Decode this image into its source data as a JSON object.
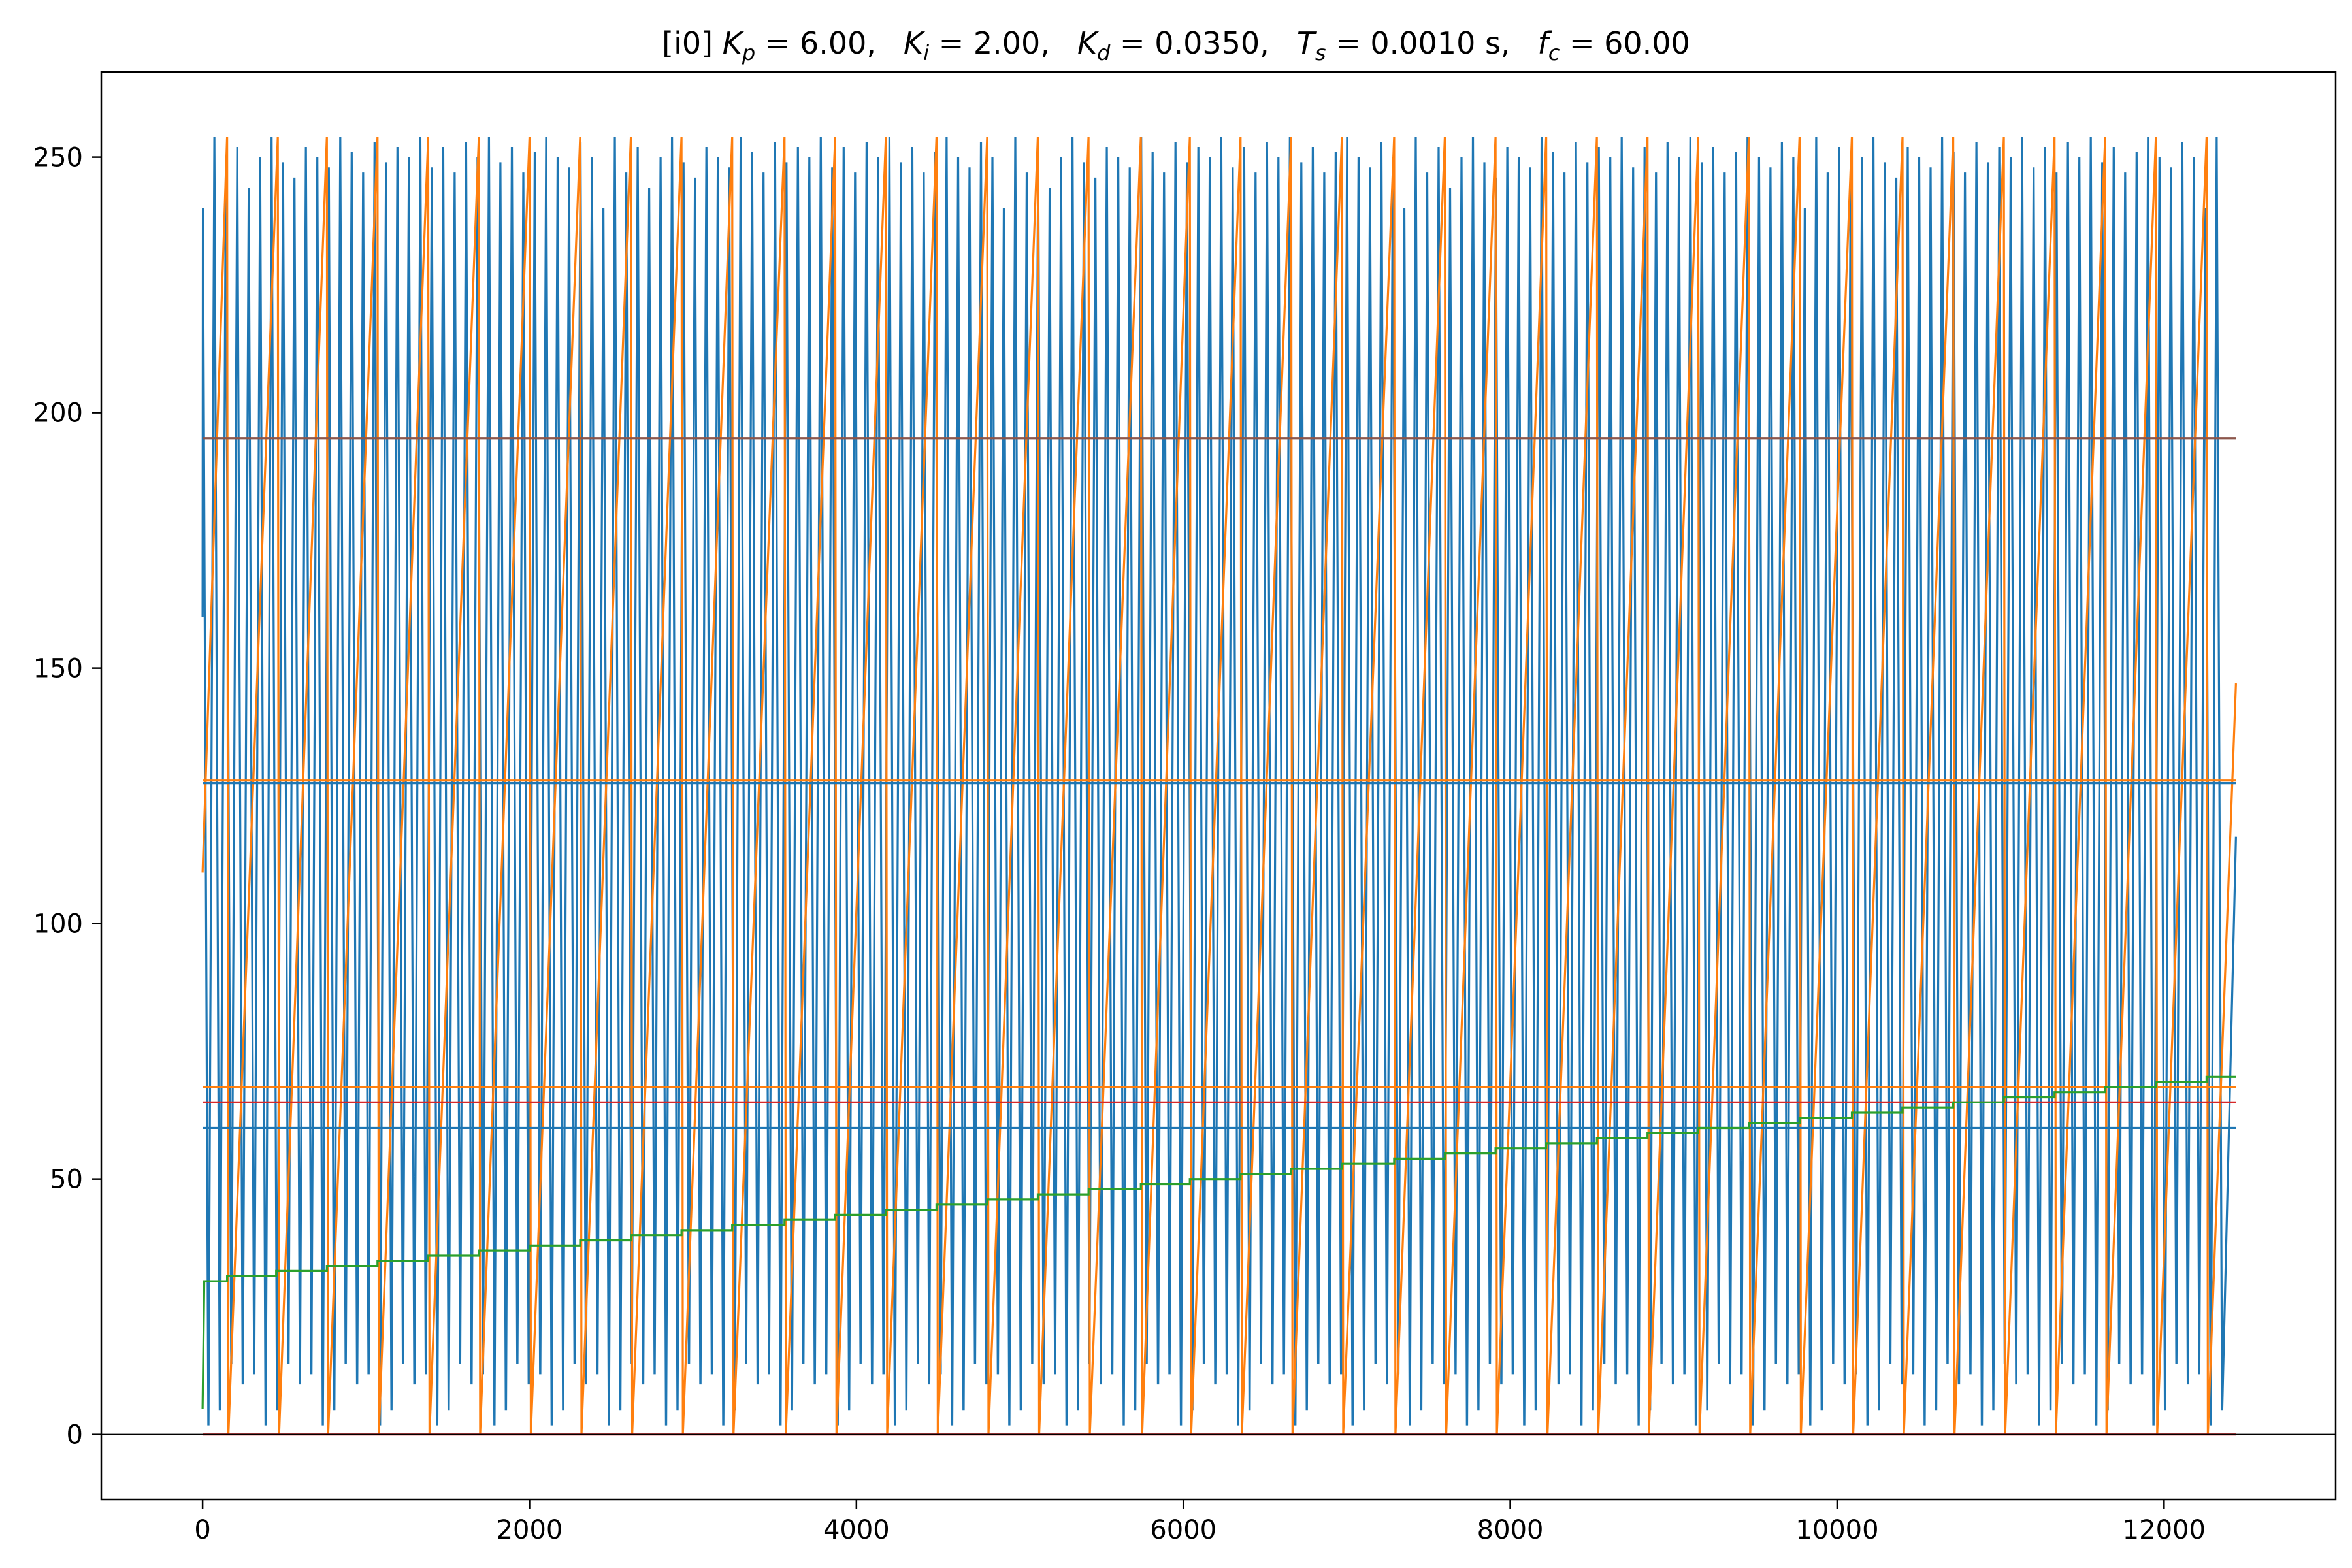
{
  "chart_data": {
    "type": "line",
    "title": "[i0] K_p = 6.00,     K_i = 2.00,     K_d = 0.0350,     T_s = 0.0010 s,     f_c = 60.00",
    "title_parts": [
      {
        "sym": "K",
        "sub": "p",
        "val": "= 6.00,"
      },
      {
        "sym": "K",
        "sub": "i",
        "val": "= 2.00,"
      },
      {
        "sym": "K",
        "sub": "d",
        "val": "= 0.0350,"
      },
      {
        "sym": "T",
        "sub": "s",
        "val": "= 0.0010 s,"
      },
      {
        "sym": "f",
        "sub": "c",
        "val": "= 60.00"
      }
    ],
    "title_prefix": "[i0]",
    "xlabel": "",
    "ylabel": "",
    "xlim": [
      -620,
      13050
    ],
    "ylim": [
      -12.7,
      266.7
    ],
    "xticks": [
      0,
      2000,
      4000,
      6000,
      8000,
      10000,
      12000
    ],
    "yticks": [
      0,
      50,
      100,
      150,
      200,
      250
    ],
    "grid": false,
    "legend": "none",
    "x_end": 12440,
    "zero_line": {
      "y": 0,
      "color": "#000000"
    },
    "hlines": [
      {
        "y": 195,
        "color": "#8c564b",
        "x": [
          0,
          12440
        ]
      },
      {
        "y": 127.5,
        "color": "#1f77b4",
        "x": [
          0,
          12440
        ]
      },
      {
        "y": 128,
        "color": "#ff7f0e",
        "x": [
          0,
          12440
        ]
      },
      {
        "y": 68,
        "color": "#ff7f0e",
        "x": [
          0,
          12440
        ]
      },
      {
        "y": 65,
        "color": "#d62728",
        "x": [
          0,
          12440
        ]
      },
      {
        "y": 60,
        "color": "#1f77b4",
        "x": [
          0,
          12440
        ]
      },
      {
        "y": 0,
        "color": "#d62728",
        "x": [
          0,
          12440
        ]
      }
    ],
    "series": [
      {
        "color": "#1f77b4",
        "kind": "fast-oscillation",
        "period": 70,
        "peaks": [
          240,
          254,
          247,
          252,
          244,
          250,
          254,
          249,
          246,
          252,
          250,
          248,
          254,
          251,
          247,
          253,
          249,
          252,
          250,
          254,
          248,
          252,
          247,
          253,
          250,
          254,
          249,
          252,
          247,
          251,
          254,
          250,
          248,
          253,
          250
        ],
        "troughs": [
          2,
          10,
          4,
          14,
          3,
          8,
          18,
          5,
          12,
          2,
          16,
          6,
          10,
          3,
          14,
          8,
          4,
          18,
          6,
          12,
          3,
          10,
          16,
          5,
          8,
          2,
          14,
          6,
          12,
          4,
          10,
          3,
          16,
          8,
          13
        ],
        "start_y": 160,
        "end_y": 117
      },
      {
        "color": "#ff7f0e",
        "kind": "sawtooth",
        "wraps": [
          150,
          460,
          760,
          1070,
          1380,
          1690,
          2000,
          2310,
          2620,
          2930,
          3240,
          3560,
          3870,
          4180,
          4490,
          4800,
          5110,
          5420,
          5740,
          6040,
          6350,
          6660,
          6970,
          7290,
          7600,
          7910,
          8220,
          8530,
          8840,
          9150,
          9460,
          9770,
          10090,
          10400,
          10710,
          11020,
          11330,
          11640,
          11950,
          12260
        ],
        "max": 254,
        "min": 0,
        "start_y": 110,
        "end_y": 147
      },
      {
        "color": "#2ca02c",
        "kind": "staircase",
        "points": [
          [
            0,
            5
          ],
          [
            10,
            30
          ],
          [
            150,
            30
          ],
          [
            150,
            31
          ],
          [
            450,
            31
          ],
          [
            450,
            32
          ],
          [
            760,
            32
          ],
          [
            760,
            33
          ],
          [
            1070,
            33
          ],
          [
            1070,
            34
          ],
          [
            1380,
            34
          ],
          [
            1380,
            35
          ],
          [
            1690,
            35
          ],
          [
            1690,
            36
          ],
          [
            2000,
            36
          ],
          [
            2000,
            37
          ],
          [
            2310,
            37
          ],
          [
            2310,
            38
          ],
          [
            2620,
            38
          ],
          [
            2620,
            39
          ],
          [
            2930,
            39
          ],
          [
            2930,
            40
          ],
          [
            3240,
            40
          ],
          [
            3240,
            41
          ],
          [
            3560,
            41
          ],
          [
            3560,
            42
          ],
          [
            3870,
            42
          ],
          [
            3870,
            43
          ],
          [
            4180,
            43
          ],
          [
            4180,
            44
          ],
          [
            4490,
            44
          ],
          [
            4490,
            45
          ],
          [
            4800,
            45
          ],
          [
            4800,
            46
          ],
          [
            5110,
            46
          ],
          [
            5110,
            47
          ],
          [
            5420,
            47
          ],
          [
            5420,
            48
          ],
          [
            5740,
            48
          ],
          [
            5740,
            49
          ],
          [
            6040,
            49
          ],
          [
            6040,
            50
          ],
          [
            6350,
            50
          ],
          [
            6350,
            51
          ],
          [
            6660,
            51
          ],
          [
            6660,
            52
          ],
          [
            6970,
            52
          ],
          [
            6970,
            53
          ],
          [
            7290,
            53
          ],
          [
            7290,
            54
          ],
          [
            7600,
            54
          ],
          [
            7600,
            55
          ],
          [
            7910,
            55
          ],
          [
            7910,
            56
          ],
          [
            8220,
            56
          ],
          [
            8220,
            57
          ],
          [
            8530,
            57
          ],
          [
            8530,
            58
          ],
          [
            8840,
            58
          ],
          [
            8840,
            59
          ],
          [
            9150,
            59
          ],
          [
            9150,
            60
          ],
          [
            9460,
            60
          ],
          [
            9460,
            61
          ],
          [
            9770,
            61
          ],
          [
            9770,
            62
          ],
          [
            10090,
            62
          ],
          [
            10090,
            63
          ],
          [
            10400,
            63
          ],
          [
            10400,
            64
          ],
          [
            10710,
            64
          ],
          [
            10710,
            65
          ],
          [
            11020,
            65
          ],
          [
            11020,
            66
          ],
          [
            11330,
            66
          ],
          [
            11330,
            67
          ],
          [
            11640,
            67
          ],
          [
            11640,
            68
          ],
          [
            11950,
            68
          ],
          [
            11950,
            69
          ],
          [
            12260,
            69
          ],
          [
            12260,
            70
          ],
          [
            12440,
            70
          ]
        ]
      }
    ]
  }
}
